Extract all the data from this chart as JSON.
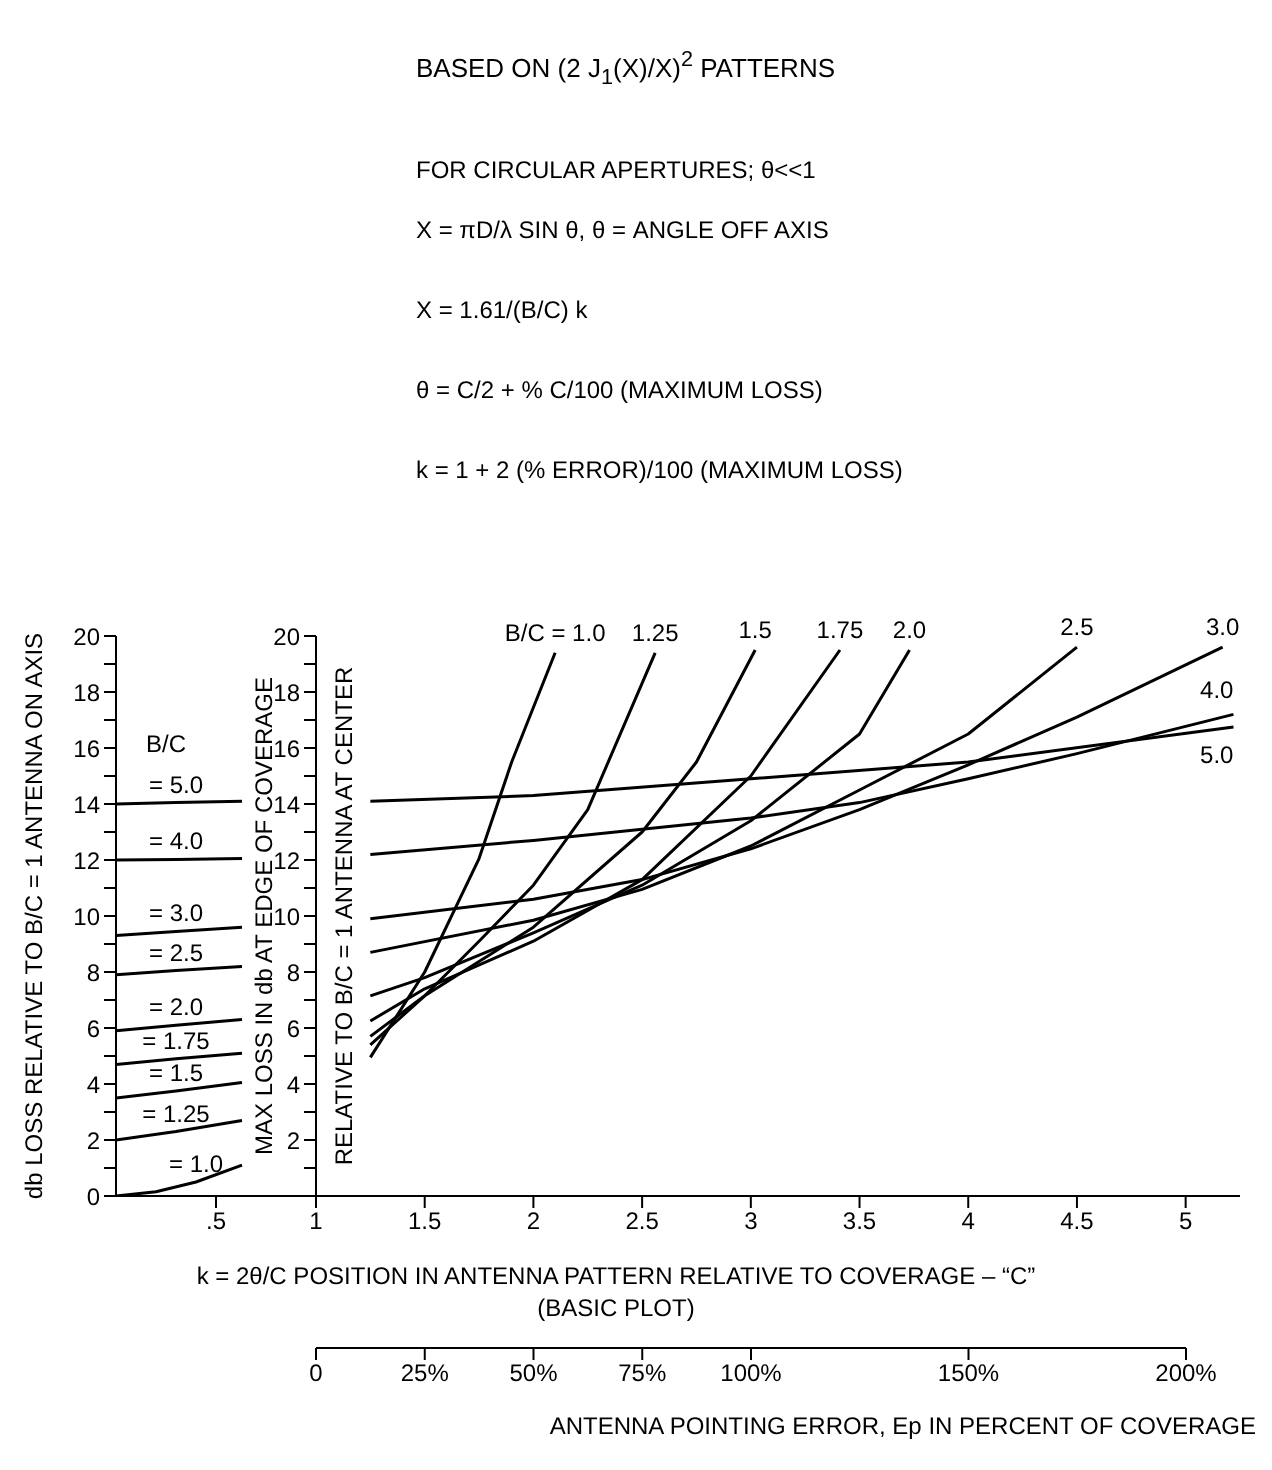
{
  "chart_data": [
    {
      "type": "line",
      "ylabel": "db LOSS RELATIVE TO B/C = 1 ANTENNA ON AXIS",
      "legend_title": "B/C",
      "xlim": [
        0,
        1
      ],
      "xticks": [
        {
          "value": 0.5,
          "label": ".5"
        },
        1
      ],
      "ylim": [
        0,
        20
      ],
      "yticks": [
        0,
        {
          "value": 1,
          "label": null
        },
        2,
        {
          "value": 3,
          "label": null
        },
        4,
        {
          "value": 5,
          "label": null
        },
        6,
        {
          "value": 7,
          "label": null
        },
        8,
        {
          "value": 9,
          "label": null
        },
        10,
        {
          "value": 11,
          "label": null
        },
        12,
        {
          "value": 13,
          "label": null
        },
        14,
        {
          "value": 15,
          "label": null
        },
        16,
        {
          "value": 17,
          "label": null
        },
        18,
        {
          "value": 19,
          "label": null
        },
        20
      ],
      "grid": false,
      "legend": false,
      "series": [
        {
          "name": "= 5.0",
          "color": "#000000",
          "x": [
            0,
            0.3,
            0.63
          ],
          "values": [
            14,
            14.05,
            14.1
          ]
        },
        {
          "name": "= 4.0",
          "color": "#000000",
          "x": [
            0,
            0.3,
            0.63
          ],
          "values": [
            12,
            12.02,
            12.05
          ]
        },
        {
          "name": "= 3.0",
          "color": "#000000",
          "x": [
            0,
            0.3,
            0.63
          ],
          "values": [
            9.3,
            9.45,
            9.6
          ]
        },
        {
          "name": "= 2.5",
          "color": "#000000",
          "x": [
            0,
            0.3,
            0.63
          ],
          "values": [
            7.9,
            8.05,
            8.2
          ]
        },
        {
          "name": "= 2.0",
          "color": "#000000",
          "x": [
            0,
            0.3,
            0.63
          ],
          "values": [
            5.9,
            6.1,
            6.3
          ]
        },
        {
          "name": "= 1.75",
          "color": "#000000",
          "x": [
            0,
            0.3,
            0.63
          ],
          "values": [
            4.7,
            4.9,
            5.1
          ]
        },
        {
          "name": "= 1.5",
          "color": "#000000",
          "x": [
            0,
            0.3,
            0.63
          ],
          "values": [
            3.5,
            3.75,
            4.05
          ]
        },
        {
          "name": "= 1.25",
          "color": "#000000",
          "x": [
            0,
            0.3,
            0.63
          ],
          "values": [
            2.0,
            2.3,
            2.7
          ]
        },
        {
          "name": "= 1.0",
          "color": "#000000",
          "x": [
            0,
            0.2,
            0.4,
            0.63
          ],
          "values": [
            0,
            0.15,
            0.5,
            1.1
          ]
        }
      ]
    },
    {
      "type": "line",
      "title": "BASED ON (2 J$_{1}$(X)/X)$^{2}$ PATTERNS",
      "annotations": [
        "FOR CIRCULAR APERTURES; θ<<1",
        "X = πD/λ SIN θ, θ = ANGLE OFF AXIS",
        "X = 1.61/(B/C) k",
        "θ = C/2 + % C/100 (MAXIMUM LOSS)",
        "k = 1 + 2 (% ERROR)/100 (MAXIMUM LOSS)"
      ],
      "ylabel": "MAX LOSS IN db AT EDGE OF COVERAGE RELATIVE TO B/C = 1 ANTENNA AT CENTER",
      "xlabel": "k = 2θ/C POSITION IN ANTENNA PATTERN RELATIVE TO COVERAGE – “C” (BASIC PLOT)",
      "x2label": "ANTENNA POINTING ERROR, Ep IN PERCENT OF COVERAGE",
      "xlim": [
        1,
        5.25
      ],
      "xticks": [
        1.5,
        2,
        2.5,
        3,
        3.5,
        4,
        4.5,
        5
      ],
      "x2lim": [
        0,
        200
      ],
      "x2ticks": [
        0,
        {
          "value": 25,
          "label": "25%"
        },
        {
          "value": 50,
          "label": "50%"
        },
        {
          "value": 75,
          "label": "75%"
        },
        {
          "value": 100,
          "label": "100%"
        },
        {
          "value": 150,
          "label": "150%"
        },
        {
          "value": 200,
          "label": "200%"
        }
      ],
      "ylim": [
        0,
        20
      ],
      "yticks": [
        {
          "value": 0,
          "label": null
        },
        {
          "value": 1,
          "label": null
        },
        2,
        {
          "value": 3,
          "label": null
        },
        4,
        {
          "value": 5,
          "label": null
        },
        6,
        {
          "value": 7,
          "label": null
        },
        8,
        {
          "value": 9,
          "label": null
        },
        10,
        {
          "value": 11,
          "label": null
        },
        12,
        {
          "value": 13,
          "label": null
        },
        14,
        {
          "value": 15,
          "label": null
        },
        16,
        {
          "value": 17,
          "label": null
        },
        18,
        {
          "value": 19,
          "label": null
        },
        20
      ],
      "grid": false,
      "legend": false,
      "series": [
        {
          "name": "B/C = 1.0",
          "color": "#000000",
          "x": [
            1.25,
            1.5,
            1.75,
            1.9,
            2.1
          ],
          "values": [
            4.95,
            8.0,
            12.05,
            15.5,
            19.4
          ]
        },
        {
          "name": "1.25",
          "color": "#000000",
          "x": [
            1.25,
            1.5,
            1.75,
            2,
            2.25,
            2.56
          ],
          "values": [
            5.4,
            7.15,
            9.1,
            11.1,
            13.8,
            19.4
          ]
        },
        {
          "name": "1.5",
          "color": "#000000",
          "x": [
            1.25,
            1.5,
            2,
            2.5,
            2.75,
            3.02
          ],
          "values": [
            5.7,
            7.15,
            9.6,
            13.0,
            15.5,
            19.5
          ]
        },
        {
          "name": "1.75",
          "color": "#000000",
          "x": [
            1.25,
            1.5,
            2,
            2.5,
            3,
            3.41
          ],
          "values": [
            6.25,
            7.4,
            9.1,
            11.3,
            15.0,
            19.5
          ]
        },
        {
          "name": "2.0",
          "color": "#000000",
          "x": [
            1.25,
            1.5,
            2,
            2.5,
            3,
            3.5,
            3.73
          ],
          "values": [
            7.15,
            7.8,
            9.4,
            11.1,
            13.4,
            16.5,
            19.5
          ]
        },
        {
          "name": "2.5",
          "color": "#000000",
          "x": [
            1.25,
            2,
            2.5,
            3,
            3.5,
            4,
            4.5
          ],
          "values": [
            8.7,
            9.85,
            10.95,
            12.5,
            14.5,
            16.5,
            19.6
          ]
        },
        {
          "name": "3.0",
          "color": "#000000",
          "x": [
            1.25,
            2,
            2.5,
            3,
            3.5,
            4,
            4.5,
            5.17
          ],
          "values": [
            9.9,
            10.6,
            11.3,
            12.4,
            13.8,
            15.4,
            17.1,
            19.6
          ]
        },
        {
          "name": "4.0",
          "color": "#000000",
          "x": [
            1.25,
            2,
            3,
            3.5,
            4,
            4.5,
            5.22
          ],
          "values": [
            12.2,
            12.7,
            13.5,
            14.05,
            14.9,
            15.8,
            17.2
          ]
        },
        {
          "name": "5.0",
          "color": "#000000",
          "x": [
            1.25,
            2,
            3,
            4,
            5.22
          ],
          "values": [
            14.1,
            14.3,
            14.9,
            15.5,
            16.75
          ]
        }
      ]
    }
  ]
}
